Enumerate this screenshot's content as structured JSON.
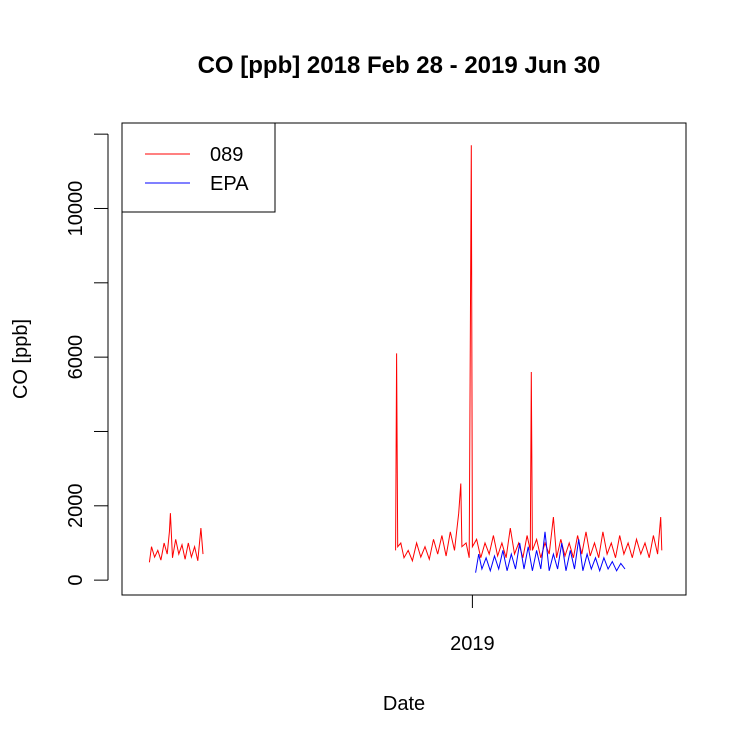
{
  "chart_data": {
    "type": "line",
    "title": "CO [ppb] 2018 Feb 28 - 2019 Jun 30",
    "xlabel": "Date",
    "ylabel": "CO [ppb]",
    "x_range": [
      "2018-02-02",
      "2019-07-23"
    ],
    "ylim": [
      -400,
      12300
    ],
    "y_ticks": [
      0,
      2000,
      6000,
      10000
    ],
    "y_minor_ticks": [
      0,
      2000,
      4000,
      6000,
      8000,
      10000,
      12000
    ],
    "x_ticks": [
      {
        "date": "2019-01-01",
        "label": "2019"
      }
    ],
    "legend": {
      "position": "top-left",
      "entries": [
        "089",
        "EPA"
      ]
    },
    "series": [
      {
        "name": "089",
        "color": "#ff0000",
        "segments": [
          [
            [
              "2018-02-28",
              480
            ],
            [
              "2018-03-02",
              900
            ],
            [
              "2018-03-05",
              620
            ],
            [
              "2018-03-08",
              800
            ],
            [
              "2018-03-11",
              540
            ],
            [
              "2018-03-14",
              1000
            ],
            [
              "2018-03-17",
              700
            ],
            [
              "2018-03-19",
              1300
            ],
            [
              "2018-03-20",
              1800
            ],
            [
              "2018-03-22",
              600
            ],
            [
              "2018-03-25",
              1100
            ],
            [
              "2018-03-28",
              700
            ],
            [
              "2018-03-31",
              950
            ],
            [
              "2018-04-03",
              560
            ],
            [
              "2018-04-06",
              1000
            ],
            [
              "2018-04-09",
              620
            ],
            [
              "2018-04-12",
              900
            ],
            [
              "2018-04-15",
              520
            ],
            [
              "2018-04-18",
              1400
            ],
            [
              "2018-04-20",
              700
            ]
          ],
          [
            [
              "2018-10-20",
              800
            ],
            [
              "2018-10-21",
              6100
            ],
            [
              "2018-10-22",
              900
            ],
            [
              "2018-10-25",
              1000
            ],
            [
              "2018-10-28",
              600
            ],
            [
              "2018-11-01",
              800
            ],
            [
              "2018-11-05",
              520
            ],
            [
              "2018-11-09",
              1000
            ],
            [
              "2018-11-13",
              620
            ],
            [
              "2018-11-17",
              900
            ],
            [
              "2018-11-21",
              560
            ],
            [
              "2018-11-25",
              1100
            ],
            [
              "2018-11-29",
              700
            ],
            [
              "2018-12-03",
              1200
            ],
            [
              "2018-12-07",
              650
            ],
            [
              "2018-12-11",
              1300
            ],
            [
              "2018-12-15",
              800
            ],
            [
              "2018-12-19",
              1800
            ],
            [
              "2018-12-21",
              2600
            ],
            [
              "2018-12-22",
              900
            ],
            [
              "2018-12-26",
              1000
            ],
            [
              "2018-12-29",
              600
            ],
            [
              "2018-12-31",
              11700
            ],
            [
              "2019-01-01",
              900
            ],
            [
              "2019-01-05",
              1100
            ],
            [
              "2019-01-09",
              600
            ],
            [
              "2019-01-13",
              1000
            ],
            [
              "2019-01-17",
              700
            ],
            [
              "2019-01-21",
              1200
            ],
            [
              "2019-01-25",
              650
            ],
            [
              "2019-01-29",
              1000
            ],
            [
              "2019-02-02",
              600
            ],
            [
              "2019-02-06",
              1400
            ],
            [
              "2019-02-10",
              700
            ],
            [
              "2019-02-14",
              1000
            ],
            [
              "2019-02-18",
              600
            ],
            [
              "2019-02-22",
              1200
            ],
            [
              "2019-02-25",
              800
            ],
            [
              "2019-02-26",
              5600
            ],
            [
              "2019-02-27",
              800
            ],
            [
              "2019-03-03",
              1100
            ],
            [
              "2019-03-07",
              600
            ],
            [
              "2019-03-11",
              1000
            ],
            [
              "2019-03-15",
              700
            ],
            [
              "2019-03-19",
              1700
            ],
            [
              "2019-03-22",
              600
            ],
            [
              "2019-03-26",
              1100
            ],
            [
              "2019-03-30",
              650
            ],
            [
              "2019-04-03",
              1000
            ],
            [
              "2019-04-07",
              600
            ],
            [
              "2019-04-11",
              1200
            ],
            [
              "2019-04-15",
              700
            ],
            [
              "2019-04-19",
              1300
            ],
            [
              "2019-04-23",
              650
            ],
            [
              "2019-04-27",
              1000
            ],
            [
              "2019-05-01",
              600
            ],
            [
              "2019-05-05",
              1300
            ],
            [
              "2019-05-09",
              700
            ],
            [
              "2019-05-13",
              1000
            ],
            [
              "2019-05-17",
              600
            ],
            [
              "2019-05-21",
              1200
            ],
            [
              "2019-05-25",
              700
            ],
            [
              "2019-05-29",
              1000
            ],
            [
              "2019-06-02",
              600
            ],
            [
              "2019-06-06",
              1100
            ],
            [
              "2019-06-10",
              700
            ],
            [
              "2019-06-14",
              1000
            ],
            [
              "2019-06-18",
              600
            ],
            [
              "2019-06-22",
              1200
            ],
            [
              "2019-06-26",
              700
            ],
            [
              "2019-06-29",
              1700
            ],
            [
              "2019-06-30",
              800
            ]
          ]
        ]
      },
      {
        "name": "EPA",
        "color": "#0000ff",
        "segments": [
          [
            [
              "2019-01-04",
              200
            ],
            [
              "2019-01-07",
              700
            ],
            [
              "2019-01-10",
              300
            ],
            [
              "2019-01-14",
              600
            ],
            [
              "2019-01-18",
              250
            ],
            [
              "2019-01-22",
              650
            ],
            [
              "2019-01-26",
              300
            ],
            [
              "2019-01-30",
              800
            ],
            [
              "2019-02-03",
              250
            ],
            [
              "2019-02-07",
              700
            ],
            [
              "2019-02-11",
              300
            ],
            [
              "2019-02-15",
              1000
            ],
            [
              "2019-02-19",
              300
            ],
            [
              "2019-02-23",
              900
            ],
            [
              "2019-02-27",
              250
            ],
            [
              "2019-03-03",
              800
            ],
            [
              "2019-03-07",
              300
            ],
            [
              "2019-03-11",
              1300
            ],
            [
              "2019-03-15",
              250
            ],
            [
              "2019-03-19",
              700
            ],
            [
              "2019-03-23",
              300
            ],
            [
              "2019-03-27",
              1000
            ],
            [
              "2019-03-31",
              250
            ],
            [
              "2019-04-04",
              800
            ],
            [
              "2019-04-08",
              300
            ],
            [
              "2019-04-12",
              1100
            ],
            [
              "2019-04-16",
              250
            ],
            [
              "2019-04-20",
              700
            ],
            [
              "2019-04-24",
              300
            ],
            [
              "2019-04-28",
              600
            ],
            [
              "2019-05-02",
              250
            ],
            [
              "2019-05-06",
              600
            ],
            [
              "2019-05-10",
              300
            ],
            [
              "2019-05-14",
              500
            ],
            [
              "2019-05-18",
              250
            ],
            [
              "2019-05-22",
              450
            ],
            [
              "2019-05-26",
              300
            ]
          ]
        ]
      }
    ]
  }
}
